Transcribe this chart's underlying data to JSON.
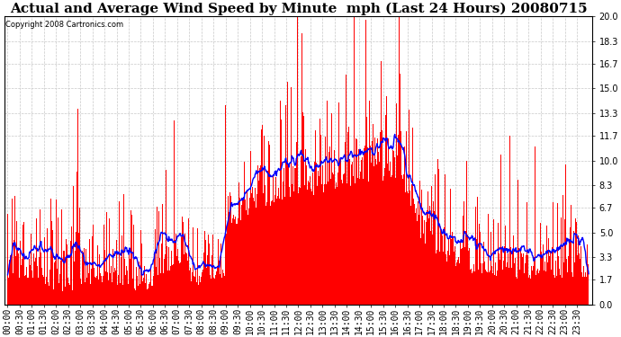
{
  "title": "Actual and Average Wind Speed by Minute  mph (Last 24 Hours) 20080715",
  "copyright": "Copyright 2008 Cartronics.com",
  "yticks": [
    0.0,
    1.7,
    3.3,
    5.0,
    6.7,
    8.3,
    10.0,
    11.7,
    13.3,
    15.0,
    16.7,
    18.3,
    20.0
  ],
  "ymax": 20.0,
  "ymin": 0.0,
  "bar_color": "#FF0000",
  "line_color": "#0000FF",
  "bg_color": "#FFFFFF",
  "plot_bg_color": "#FFFFFF",
  "grid_color": "#C8C8C8",
  "title_fontsize": 11,
  "tick_fontsize": 7,
  "n_points": 1440,
  "avg_window": 30
}
